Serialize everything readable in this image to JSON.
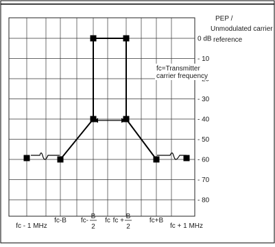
{
  "header": {
    "pep_line1": "PEP /",
    "pep_line2": "Unmodulated carrier",
    "pep_line3": "reference"
  },
  "annotation": {
    "line1": "fc=Transmitter",
    "line2": "carrier frequency"
  },
  "y_axis": {
    "labels": [
      "0 dB",
      "- 10",
      "- 20",
      "- 30",
      "- 40",
      "- 50",
      "- 60",
      "- 70",
      "- 80"
    ],
    "values": [
      0,
      -10,
      -20,
      -30,
      -40,
      -50,
      -60,
      -70,
      -80
    ]
  },
  "x_axis": {
    "label_fc_minus_1": "fc - 1 MHz",
    "label_fc_minus_B": "fc-B",
    "label_fc_minus_B2_prefix": "fc-",
    "label_fc_minus_B2_num": "B",
    "label_fc_minus_B2_den": "2",
    "label_fc": "fc",
    "label_fc_plus_B2_prefix": "fc +",
    "label_fc_plus_B2_num": "B",
    "label_fc_plus_B2_den": "2",
    "label_fc_plus_B": "fc+B",
    "label_fc_plus_1": "fc + 1 MHz"
  },
  "chart_data": {
    "type": "line",
    "title": "",
    "xlabel": "",
    "ylabel": "",
    "x_positions": [
      "fc - 1 MHz",
      "fc-B",
      "fc-B/2",
      "fc",
      "fc+B/2",
      "fc+B",
      "fc + 1 MHz"
    ],
    "ylim": [
      -90,
      0
    ],
    "grid": true,
    "series": [
      {
        "points": [
          {
            "x": "fc - 1 MHz",
            "y": -60
          },
          {
            "x": "fc-B",
            "y": -60
          },
          {
            "x": "fc-B/2",
            "y": -40
          },
          {
            "x": "fc-B/2",
            "y": 0
          },
          {
            "x": "fc+B/2",
            "y": 0
          },
          {
            "x": "fc+B/2",
            "y": -40
          },
          {
            "x": "fc+B",
            "y": -60
          },
          {
            "x": "fc + 1 MHz",
            "y": -60
          }
        ]
      }
    ],
    "annotations": [
      "fc=Transmitter carrier frequency",
      "bandwidth arrow between fc-B/2 and fc+B/2 at -40 dB"
    ]
  }
}
